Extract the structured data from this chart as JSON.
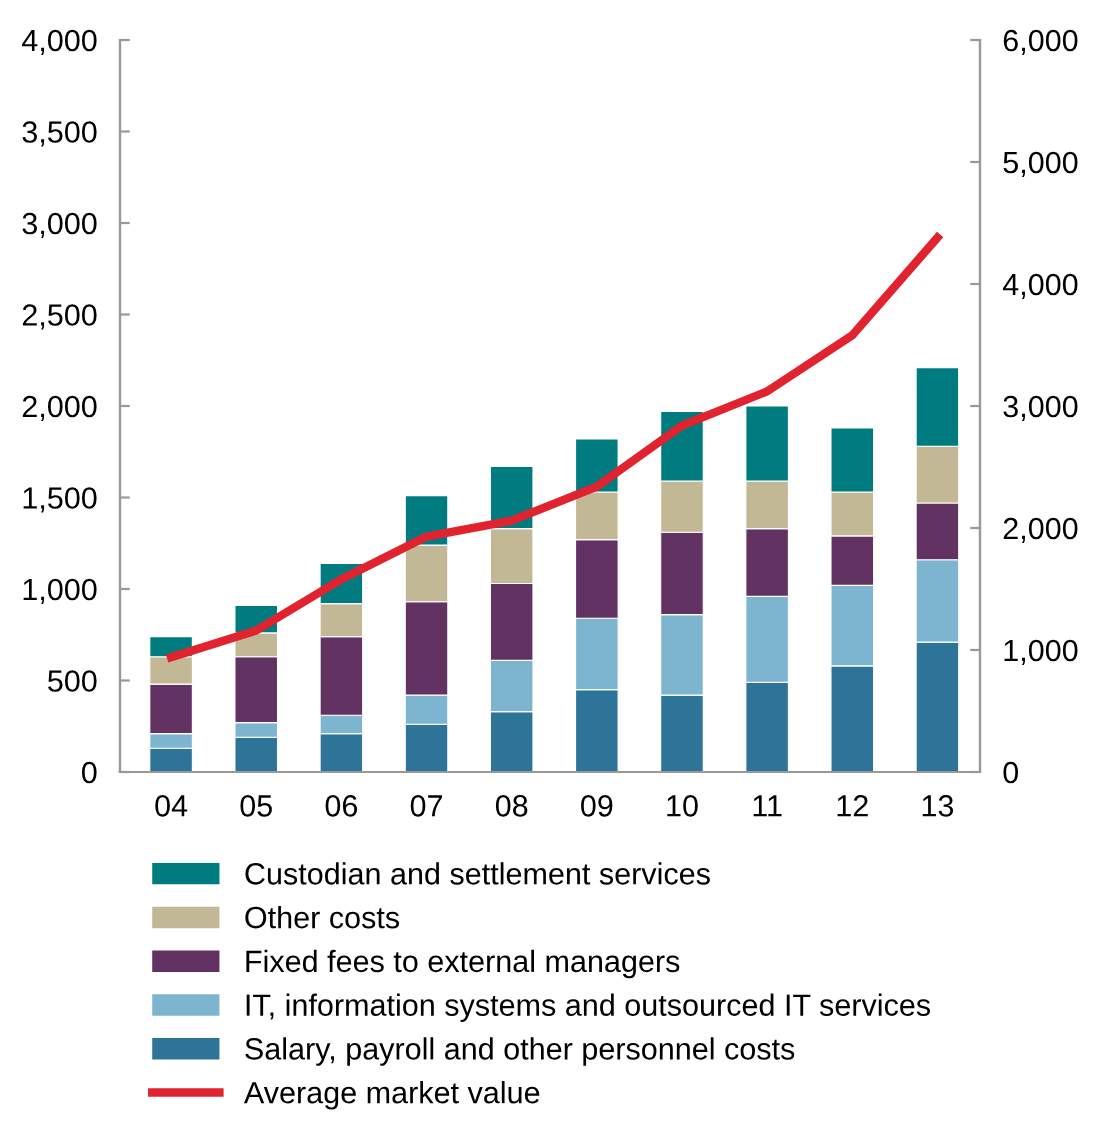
{
  "chart_data": {
    "type": "bar",
    "stacked": true,
    "categories": [
      "04",
      "05",
      "06",
      "07",
      "08",
      "09",
      "10",
      "11",
      "12",
      "13"
    ],
    "series": [
      {
        "name": "Salary, payroll and other personnel costs",
        "color": "#2e7499",
        "values": [
          130,
          190,
          210,
          260,
          330,
          450,
          420,
          490,
          580,
          710
        ]
      },
      {
        "name": "IT, information systems and outsourced IT services",
        "color": "#7db4cf",
        "values": [
          80,
          80,
          100,
          160,
          280,
          390,
          440,
          470,
          440,
          450
        ]
      },
      {
        "name": "Fixed fees to external managers",
        "color": "#623262",
        "values": [
          270,
          360,
          430,
          510,
          420,
          430,
          450,
          370,
          270,
          310
        ]
      },
      {
        "name": "Other costs",
        "color": "#c3b896",
        "values": [
          150,
          130,
          180,
          310,
          300,
          260,
          280,
          260,
          240,
          310
        ]
      },
      {
        "name": "Custodian and settlement services",
        "color": "#007c80",
        "values": [
          110,
          150,
          220,
          270,
          340,
          290,
          380,
          410,
          350,
          430
        ]
      },
      {
        "name": "Average market value",
        "type": "line",
        "axis": "y2",
        "color": "#e0232e",
        "values": [
          940,
          1160,
          1580,
          1930,
          2060,
          2340,
          2840,
          3120,
          3580,
          4380
        ]
      }
    ],
    "ylim": [
      0,
      4000
    ],
    "yticks": [
      0,
      500,
      {
        "value": 1000,
        "label": "1,000"
      },
      {
        "value": 1500,
        "label": "1,500"
      },
      {
        "value": 2000,
        "label": "2,000"
      },
      {
        "value": 2500,
        "label": "2,500"
      },
      {
        "value": 3000,
        "label": "3,000"
      },
      {
        "value": 3500,
        "label": "3,500"
      },
      {
        "value": 4000,
        "label": "4,000"
      }
    ],
    "y2lim": [
      0,
      6000
    ],
    "y2ticks": [
      0,
      {
        "value": 1000,
        "label": "1,000"
      },
      {
        "value": 2000,
        "label": "2,000"
      },
      {
        "value": 3000,
        "label": "3,000"
      },
      {
        "value": 4000,
        "label": "4,000"
      },
      {
        "value": 5000,
        "label": "5,000"
      },
      {
        "value": 6000,
        "label": "6,000"
      }
    ],
    "grid": false,
    "legend": "bottom",
    "marker": "none",
    "line_style": "solid"
  }
}
